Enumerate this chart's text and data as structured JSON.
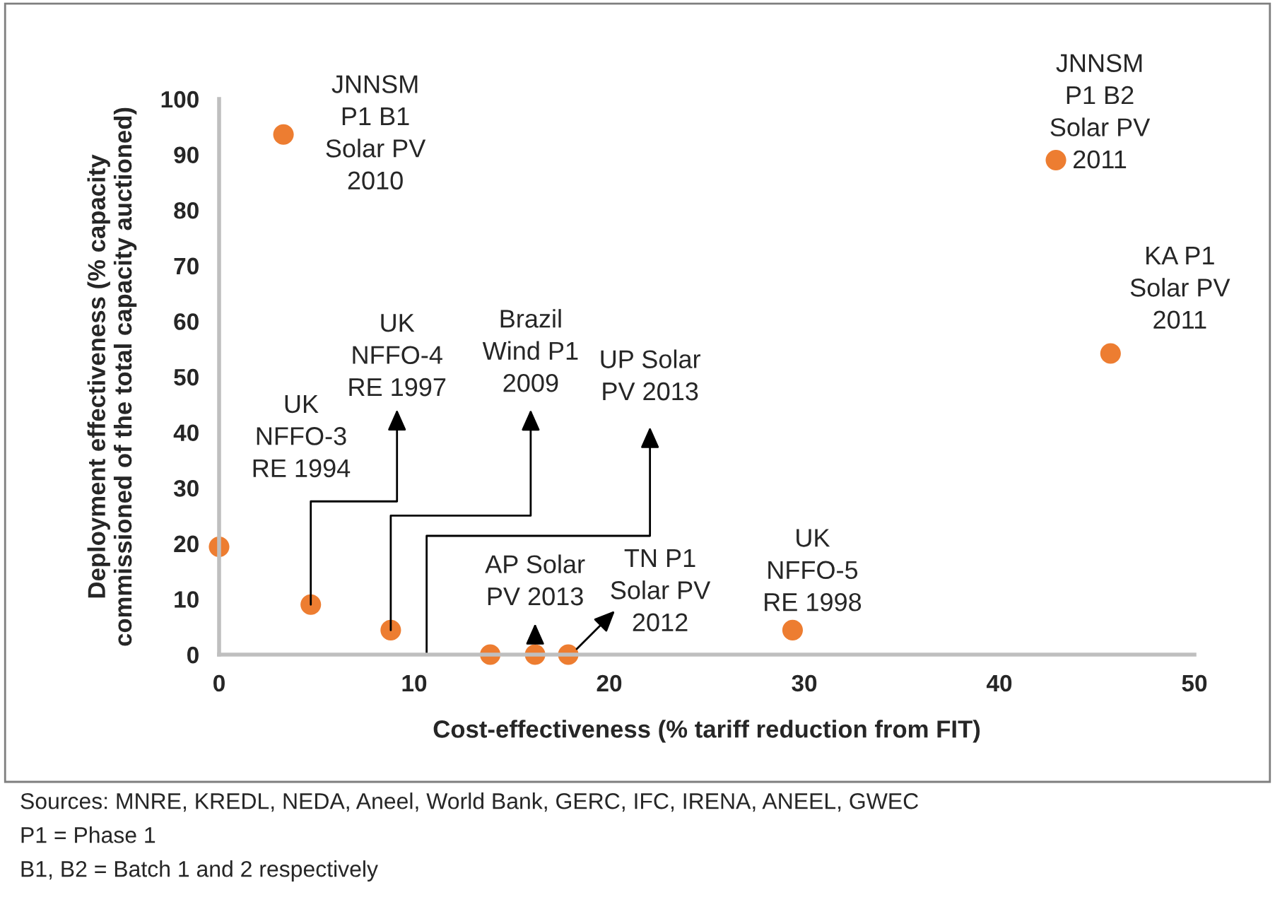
{
  "chart_data": {
    "type": "scatter",
    "xlabel": "Cost-effectiveness (% tariff reduction from FIT)",
    "ylabel": "Deployment effectiveness (% capacity\ncommissioned of the total capacity auctioned)",
    "x": [
      0,
      3.3,
      4.7,
      8.8,
      13.9,
      16.2,
      17.9,
      29.4,
      42.9,
      45.7
    ],
    "series": [
      {
        "color": "#ed7d31",
        "values": [
          19.4,
          93.6,
          9.0,
          4.4,
          0,
          0,
          0,
          4.4,
          89,
          54.2
        ]
      }
    ],
    "xlim": [
      0,
      50
    ],
    "xticks": [
      0,
      10,
      20,
      30,
      40,
      50
    ],
    "ylim": [
      0,
      100
    ],
    "yticks": [
      0,
      10,
      20,
      30,
      40,
      50,
      60,
      70,
      80,
      90,
      100
    ],
    "grid": false,
    "marker": "circle",
    "annotations": [
      "UK\nNFFO-3\nRE 1994",
      {
        "text": "JNNSM\nP1 B1\nSolar PV\n2010",
        "x": 3.3,
        "y": 93.6
      },
      {
        "text": "UK\nNFFO-4\nRE 1997",
        "x": 4.7,
        "y": 9.0
      },
      {
        "text": "Brazil\nWind P1\n2009",
        "x": 8.8,
        "y": 4.4
      },
      {
        "text": "UP Solar\nPV 2013",
        "x": 13.9,
        "y": 0
      },
      {
        "text": "AP Solar\nPV 2013",
        "x": 16.2,
        "y": 0
      },
      {
        "text": "TN P1\nSolar PV\n2012",
        "x": 17.9,
        "y": 0
      },
      {
        "text": "UK\nNFFO-5\nRE 1998",
        "x": 29.4,
        "y": 4.4
      },
      {
        "text": "JNNSM\nP1 B2\nSolar PV\n2011",
        "x": 42.9,
        "y": 89
      },
      {
        "text": "KA P1\nSolar PV\n2011",
        "x": 45.7,
        "y": 54.2
      },
      "Sources: MNRE, KREDL, NEDA, Aneel, World Bank, GERC, IFC, IRENA, ANEEL, GWEC",
      "P1 = Phase 1",
      "B1, B2 = Batch 1 and 2 respectively"
    ]
  }
}
